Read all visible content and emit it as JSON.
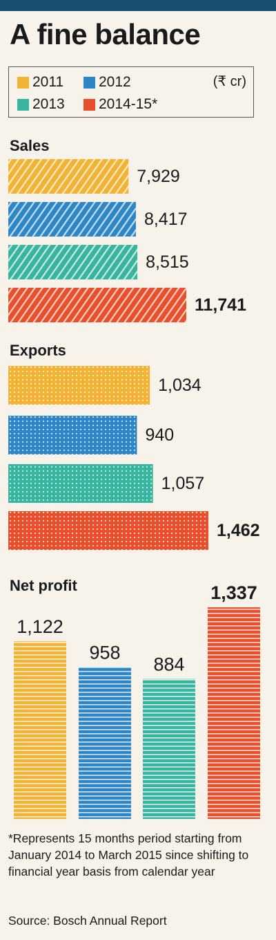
{
  "title": "A fine balance",
  "unit": "(₹ cr)",
  "legend": [
    {
      "label": "2011",
      "color": "#f2b233"
    },
    {
      "label": "2012",
      "color": "#2f86c6"
    },
    {
      "label": "2013",
      "color": "#37b59e"
    },
    {
      "label": "2014-15*",
      "color": "#ea4f2c"
    }
  ],
  "chart_data": [
    {
      "type": "bar",
      "orientation": "horizontal",
      "title": "Sales",
      "categories": [
        "2011",
        "2012",
        "2013",
        "2014-15*"
      ],
      "values": [
        7929,
        8417,
        8515,
        11741
      ],
      "labels": [
        "7,929",
        "8,417",
        "8,515",
        "11,741"
      ],
      "pattern": "diagonal-stripes"
    },
    {
      "type": "bar",
      "orientation": "horizontal",
      "title": "Exports",
      "categories": [
        "2011",
        "2012",
        "2013",
        "2014-15*"
      ],
      "values": [
        1034,
        940,
        1057,
        1462
      ],
      "labels": [
        "1,034",
        "940",
        "1,057",
        "1,462"
      ],
      "pattern": "dots"
    },
    {
      "type": "bar",
      "orientation": "vertical",
      "title": "Net profit",
      "categories": [
        "2011",
        "2012",
        "2013",
        "2014-15*"
      ],
      "values": [
        1122,
        958,
        884,
        1337
      ],
      "labels": [
        "1,122",
        "958",
        "884",
        "1,337"
      ],
      "pattern": "horizontal-lines"
    }
  ],
  "footnote": "*Represents 15 months period starting from January 2014 to March 2015 since shifting to financial year basis from calendar year",
  "source": "Source: Bosch Annual Report"
}
